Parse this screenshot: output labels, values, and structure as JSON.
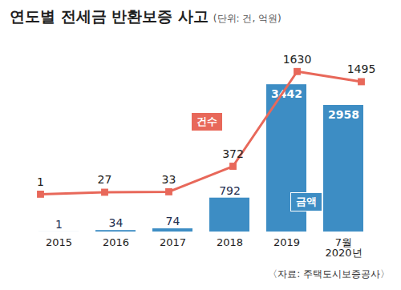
{
  "chart_data": {
    "type": "bar",
    "title": "연도별 전세금 반환보증 사고",
    "subtitle": "(단위: 건, 억원)",
    "source": "〈자료: 주택도시보증공사〉",
    "categories": [
      "2015",
      "2016",
      "2017",
      "2018",
      "2019",
      "7월\n2020년"
    ],
    "series": [
      {
        "name": "건수",
        "type": "line",
        "axis": "y2",
        "color": "#e8685a",
        "marker": "square",
        "values": [
          1,
          27,
          33,
          372,
          1630,
          1495
        ]
      },
      {
        "name": "금액",
        "type": "bar",
        "color": "#3d8dc4",
        "values": [
          1,
          34,
          74,
          792,
          3442,
          2958
        ]
      }
    ],
    "ylim": [
      0,
      4400
    ],
    "y2lim": [
      -500,
      2000
    ],
    "data_labels": true,
    "tick_labels": "x"
  }
}
